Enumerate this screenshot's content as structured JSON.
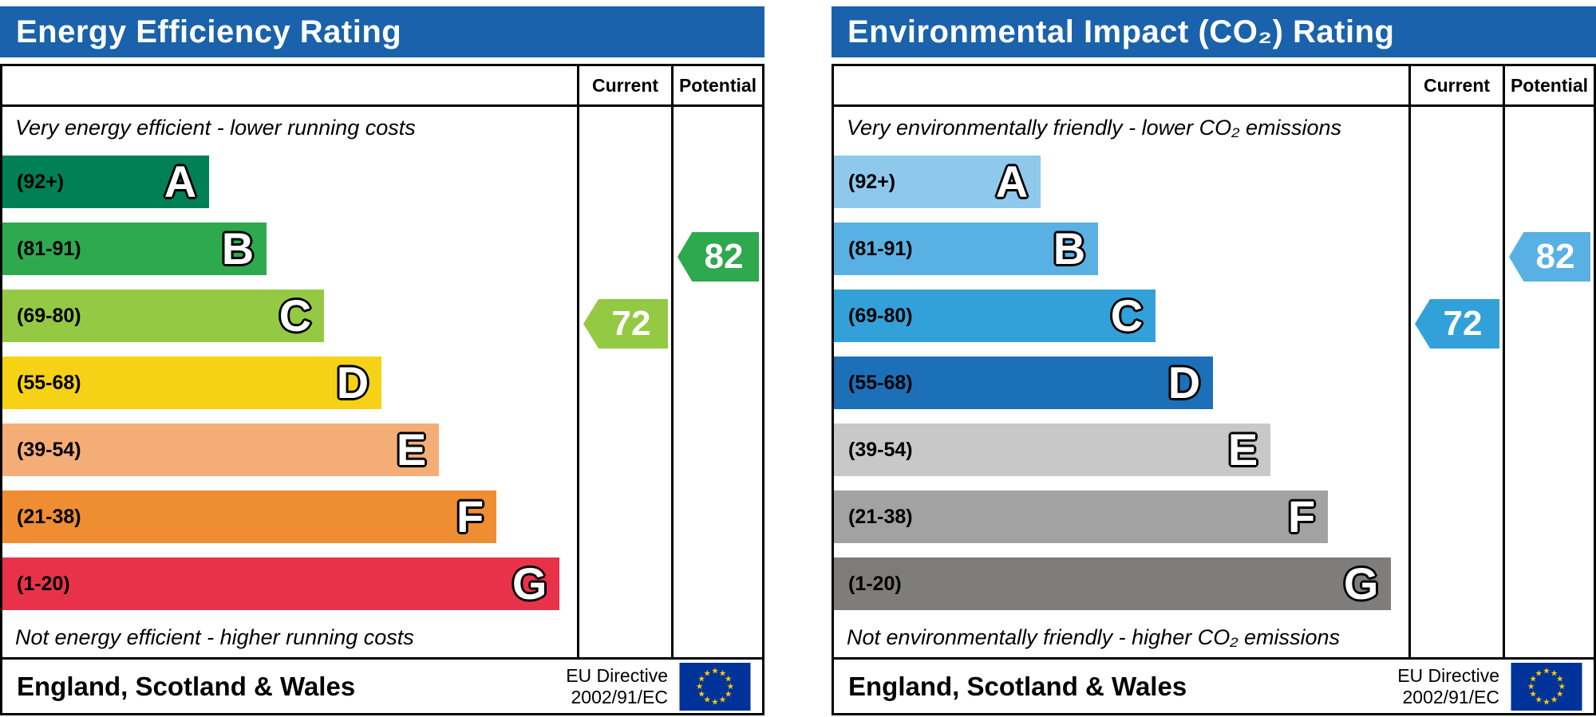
{
  "panels": [
    {
      "title": "Energy Efficiency Rating",
      "header_bg": "#1a62ab",
      "col_current": "Current",
      "col_potential": "Potential",
      "top_note": "Very energy efficient - lower running costs",
      "bottom_note": "Not energy efficient - higher running costs",
      "bands": [
        {
          "range": "(92+)",
          "letter": "A",
          "color": "#008054",
          "width_pct": 36
        },
        {
          "range": "(81-91)",
          "letter": "B",
          "color": "#2ea94e",
          "width_pct": 46
        },
        {
          "range": "(69-80)",
          "letter": "C",
          "color": "#94ca43",
          "width_pct": 56
        },
        {
          "range": "(55-68)",
          "letter": "D",
          "color": "#f6d216",
          "width_pct": 66
        },
        {
          "range": "(39-54)",
          "letter": "E",
          "color": "#f5ad78",
          "width_pct": 76
        },
        {
          "range": "(21-38)",
          "letter": "F",
          "color": "#ef8d33",
          "width_pct": 86
        },
        {
          "range": "(1-20)",
          "letter": "G",
          "color": "#e8324a",
          "width_pct": 97
        }
      ],
      "current": {
        "value": "72",
        "band": "C",
        "color": "#94ca43",
        "row": 2
      },
      "potential": {
        "value": "82",
        "band": "B",
        "color": "#2ea94e",
        "row": 1
      },
      "footer_region": "England, Scotland & Wales",
      "eu_directive_line1": "EU Directive",
      "eu_directive_line2": "2002/91/EC"
    },
    {
      "title": "Environmental Impact (CO₂) Rating",
      "header_bg": "#1a62ab",
      "col_current": "Current",
      "col_potential": "Potential",
      "top_note": "Very environmentally friendly - lower CO₂ emissions",
      "bottom_note": "Not environmentally friendly - higher CO₂ emissions",
      "bands": [
        {
          "range": "(92+)",
          "letter": "A",
          "color": "#8ec9ec",
          "width_pct": 36
        },
        {
          "range": "(81-91)",
          "letter": "B",
          "color": "#59b1e3",
          "width_pct": 46
        },
        {
          "range": "(69-80)",
          "letter": "C",
          "color": "#33a1d9",
          "width_pct": 56
        },
        {
          "range": "(55-68)",
          "letter": "D",
          "color": "#1c70b8",
          "width_pct": 66
        },
        {
          "range": "(39-54)",
          "letter": "E",
          "color": "#c8c8c8",
          "width_pct": 76
        },
        {
          "range": "(21-38)",
          "letter": "F",
          "color": "#a3a2a2",
          "width_pct": 86
        },
        {
          "range": "(1-20)",
          "letter": "G",
          "color": "#7e7d7c",
          "width_pct": 97
        }
      ],
      "current": {
        "value": "72",
        "band": "C",
        "color": "#33a1d9",
        "row": 2
      },
      "potential": {
        "value": "82",
        "band": "B",
        "color": "#59b1e3",
        "row": 1
      },
      "footer_region": "England, Scotland & Wales",
      "eu_directive_line1": "EU Directive",
      "eu_directive_line2": "2002/91/EC"
    }
  ],
  "chart_data": [
    {
      "type": "bar",
      "orientation": "horizontal",
      "title": "Energy Efficiency Rating",
      "categories": [
        "A",
        "B",
        "C",
        "D",
        "E",
        "F",
        "G"
      ],
      "band_ranges": [
        "92+",
        "81-91",
        "69-80",
        "55-68",
        "39-54",
        "21-38",
        "1-20"
      ],
      "band_colors": [
        "#008054",
        "#2ea94e",
        "#94ca43",
        "#f6d216",
        "#f5ad78",
        "#ef8d33",
        "#e8324a"
      ],
      "bar_lengths_pct": [
        36,
        46,
        56,
        66,
        76,
        86,
        97
      ],
      "columns": [
        "Current",
        "Potential"
      ],
      "current": {
        "value": 72,
        "band": "C"
      },
      "potential": {
        "value": 82,
        "band": "B"
      },
      "annotations": [
        "Very energy efficient - lower running costs",
        "Not energy efficient - higher running costs"
      ],
      "footer": "England, Scotland & Wales",
      "directive": "EU Directive 2002/91/EC"
    },
    {
      "type": "bar",
      "orientation": "horizontal",
      "title": "Environmental Impact (CO₂) Rating",
      "categories": [
        "A",
        "B",
        "C",
        "D",
        "E",
        "F",
        "G"
      ],
      "band_ranges": [
        "92+",
        "81-91",
        "69-80",
        "55-68",
        "39-54",
        "21-38",
        "1-20"
      ],
      "band_colors": [
        "#8ec9ec",
        "#59b1e3",
        "#33a1d9",
        "#1c70b8",
        "#c8c8c8",
        "#a3a2a2",
        "#7e7d7c"
      ],
      "bar_lengths_pct": [
        36,
        46,
        56,
        66,
        76,
        86,
        97
      ],
      "columns": [
        "Current",
        "Potential"
      ],
      "current": {
        "value": 72,
        "band": "C"
      },
      "potential": {
        "value": 82,
        "band": "B"
      },
      "annotations": [
        "Very environmentally friendly - lower CO₂ emissions",
        "Not environmentally friendly - higher CO₂ emissions"
      ],
      "footer": "England, Scotland & Wales",
      "directive": "EU Directive 2002/91/EC"
    }
  ]
}
